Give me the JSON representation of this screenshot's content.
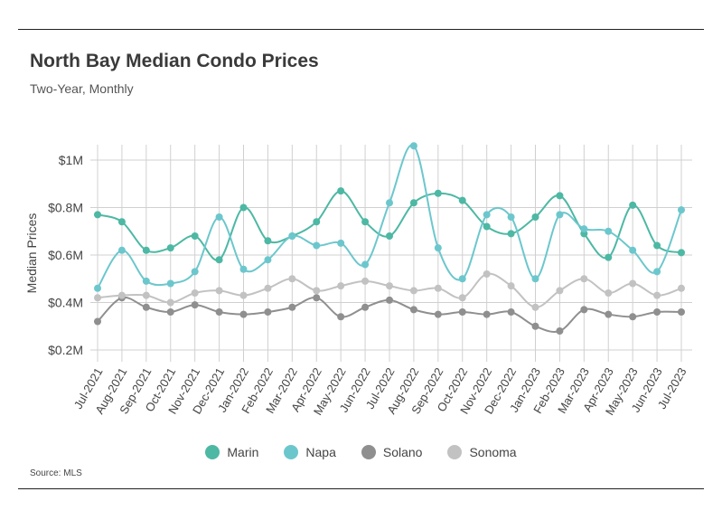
{
  "header": {
    "title": "North Bay Median Condo Prices",
    "subtitle": "Two-Year, Monthly"
  },
  "footer": {
    "source": "Source: MLS"
  },
  "chart_data": {
    "type": "line",
    "title": "North Bay Median Condo Prices",
    "subtitle": "Two-Year, Monthly",
    "xlabel": "",
    "ylabel": "Median Prices",
    "ylim": [
      0.2,
      1.0
    ],
    "y_ticks": [
      {
        "value": 0.2,
        "label": "$0.2M"
      },
      {
        "value": 0.4,
        "label": "$0.4M"
      },
      {
        "value": 0.6,
        "label": "$0.6M"
      },
      {
        "value": 0.8,
        "label": "$0.8M"
      },
      {
        "value": 1.0,
        "label": "$1M"
      }
    ],
    "grid": "vertical and horizontal",
    "legend_position": "bottom",
    "categories": [
      "Jul-2021",
      "Aug-2021",
      "Sep-2021",
      "Oct-2021",
      "Nov-2021",
      "Dec-2021",
      "Jan-2022",
      "Feb-2022",
      "Mar-2022",
      "Apr-2022",
      "May-2022",
      "Jun-2022",
      "Jul-2022",
      "Aug-2022",
      "Sep-2022",
      "Oct-2022",
      "Nov-2022",
      "Dec-2022",
      "Jan-2023",
      "Feb-2023",
      "Mar-2023",
      "Apr-2023",
      "May-2023",
      "Jun-2023",
      "Jul-2023"
    ],
    "series": [
      {
        "name": "Marin",
        "color": "#4db8a4",
        "values": [
          0.77,
          0.74,
          0.62,
          0.63,
          0.68,
          0.58,
          0.8,
          0.66,
          0.68,
          0.74,
          0.87,
          0.74,
          0.68,
          0.82,
          0.86,
          0.83,
          0.72,
          0.69,
          0.76,
          0.85,
          0.69,
          0.59,
          0.81,
          0.64,
          0.61
        ]
      },
      {
        "name": "Napa",
        "color": "#6cc7cd",
        "values": [
          0.46,
          0.62,
          0.49,
          0.48,
          0.53,
          0.76,
          0.54,
          0.58,
          0.68,
          0.64,
          0.65,
          0.56,
          0.82,
          1.06,
          0.63,
          0.5,
          0.77,
          0.76,
          0.5,
          0.77,
          0.71,
          0.7,
          0.62,
          0.53,
          0.79
        ]
      },
      {
        "name": "Solano",
        "color": "#8f8f8f",
        "values": [
          0.32,
          0.42,
          0.38,
          0.36,
          0.39,
          0.36,
          0.35,
          0.36,
          0.38,
          0.42,
          0.34,
          0.38,
          0.41,
          0.37,
          0.35,
          0.36,
          0.35,
          0.36,
          0.3,
          0.28,
          0.37,
          0.35,
          0.34,
          0.36,
          0.36
        ]
      },
      {
        "name": "Sonoma",
        "color": "#c2c2c2",
        "values": [
          0.42,
          0.43,
          0.43,
          0.4,
          0.44,
          0.45,
          0.43,
          0.46,
          0.5,
          0.45,
          0.47,
          0.49,
          0.47,
          0.45,
          0.46,
          0.42,
          0.52,
          0.47,
          0.38,
          0.45,
          0.5,
          0.44,
          0.48,
          0.43,
          0.46
        ]
      }
    ]
  }
}
